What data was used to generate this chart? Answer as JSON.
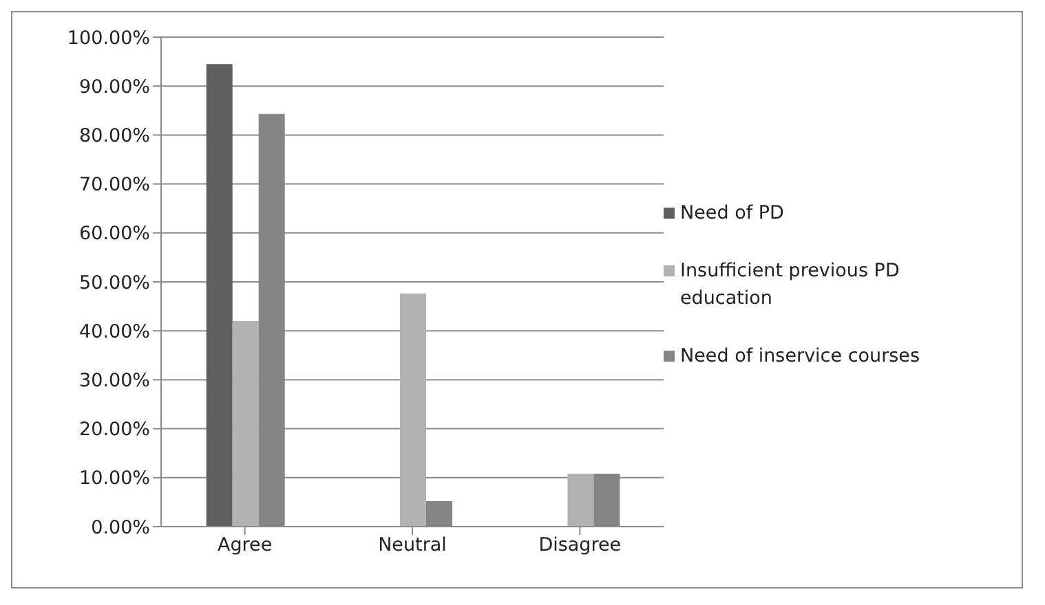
{
  "chart_data": {
    "type": "bar",
    "categories": [
      "Agree",
      "Neutral",
      "Disagree"
    ],
    "series": [
      {
        "name": "Need of PD",
        "color": "#5f5f5f",
        "values": [
          94.5,
          0,
          0
        ]
      },
      {
        "name": "Insufficient previous PD education",
        "color": "#b2b2b2",
        "values": [
          42.0,
          47.6,
          10.8
        ]
      },
      {
        "name": "Need of inservice courses",
        "color": "#858585",
        "values": [
          84.3,
          5.2,
          10.8
        ]
      }
    ],
    "ylim": [
      0,
      100
    ],
    "yticks": [
      {
        "value": 0,
        "label": "0.00%"
      },
      {
        "value": 10,
        "label": "10.00%"
      },
      {
        "value": 20,
        "label": "20.00%"
      },
      {
        "value": 30,
        "label": "30.00%"
      },
      {
        "value": 40,
        "label": "40.00%"
      },
      {
        "value": 50,
        "label": "50.00%"
      },
      {
        "value": 60,
        "label": "60.00%"
      },
      {
        "value": 70,
        "label": "70.00%"
      },
      {
        "value": 80,
        "label": "80.00%"
      },
      {
        "value": 90,
        "label": "90.00%"
      },
      {
        "value": 100,
        "label": "100.00%"
      }
    ],
    "grid": "y",
    "legend": "right"
  }
}
